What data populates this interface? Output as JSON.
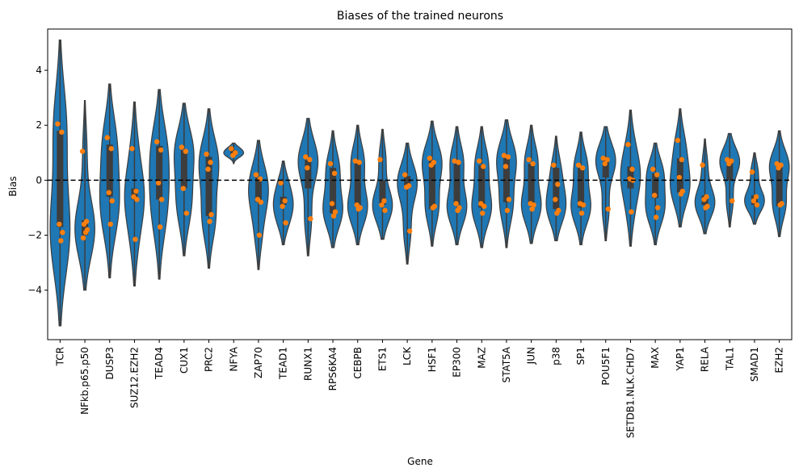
{
  "chart_data": {
    "type": "violin",
    "title": "Biases of the trained neurons",
    "xlabel": "Gene",
    "ylabel": "Bias",
    "ylim": [
      -5.8,
      5.5
    ],
    "yticks": [
      -4,
      -2,
      0,
      2,
      4
    ],
    "reference_line": {
      "y": 0,
      "style": "dashed",
      "color": "#000000"
    },
    "violin_color": "#1f77b4",
    "point_color": "#ff7f0e",
    "box_color": "#3d3d3d",
    "categories": [
      "TCR",
      "NFkb.p65.p50",
      "DUSP3",
      "SUZ12.EZH2",
      "TEAD4",
      "CUX1",
      "PRC2",
      "NFYA",
      "ZAP70",
      "TEAD1",
      "RUNX1",
      "RPS6KA4",
      "CEBPB",
      "ETS1",
      "LCK",
      "HSF1",
      "EP300",
      "MAZ",
      "STAT5A",
      "JUN",
      "p38",
      "SP1",
      "POU5F1",
      "SETDB1.NLK.CHD7",
      "MAX",
      "YAP1",
      "RELA",
      "TAL1",
      "SMAD1",
      "EZH2"
    ],
    "violins": [
      {
        "min": -5.3,
        "max": 5.1,
        "q1": -1.7,
        "q3": 1.8,
        "points": [
          2.05,
          1.75,
          -1.6,
          -1.9,
          -2.2
        ]
      },
      {
        "min": -4.0,
        "max": 2.9,
        "q1": -2.0,
        "q3": -1.45,
        "points": [
          1.05,
          -1.5,
          -1.6,
          -1.8,
          -1.9,
          -2.1
        ]
      },
      {
        "min": -3.55,
        "max": 3.5,
        "q1": -0.6,
        "q3": 1.3,
        "points": [
          1.55,
          1.15,
          -0.45,
          -0.75,
          -1.6
        ]
      },
      {
        "min": -3.85,
        "max": 2.85,
        "q1": -0.7,
        "q3": -0.3,
        "points": [
          1.15,
          -0.4,
          -0.6,
          -0.7,
          -2.15
        ]
      },
      {
        "min": -3.6,
        "max": 3.3,
        "q1": -0.7,
        "q3": 1.25,
        "points": [
          1.4,
          1.1,
          -0.1,
          -0.7,
          -1.7
        ]
      },
      {
        "min": -2.75,
        "max": 2.8,
        "q1": -0.3,
        "q3": 1.1,
        "points": [
          1.2,
          1.05,
          -0.3,
          -1.2
        ]
      },
      {
        "min": -3.2,
        "max": 2.6,
        "q1": -1.3,
        "q3": 0.85,
        "points": [
          0.95,
          0.65,
          0.4,
          -1.25,
          -1.5
        ]
      },
      {
        "min": 0.6,
        "max": 1.35,
        "q1": 0.9,
        "q3": 1.1,
        "points": [
          1.15,
          1.0,
          0.9
        ]
      },
      {
        "min": -3.25,
        "max": 1.45,
        "q1": -0.8,
        "q3": 0.1,
        "points": [
          0.2,
          0.05,
          -0.7,
          -0.8,
          -2.0
        ]
      },
      {
        "min": -2.35,
        "max": 0.7,
        "q1": -0.9,
        "q3": -0.6,
        "points": [
          -0.1,
          -0.75,
          -0.95,
          -1.55
        ]
      },
      {
        "min": -2.75,
        "max": 2.25,
        "q1": -0.3,
        "q3": 0.75,
        "points": [
          0.85,
          0.75,
          0.45,
          -1.4
        ]
      },
      {
        "min": -2.45,
        "max": 1.8,
        "q1": -1.2,
        "q3": 0.45,
        "points": [
          0.6,
          0.25,
          -0.85,
          -1.15,
          -1.3
        ]
      },
      {
        "min": -2.35,
        "max": 2.0,
        "q1": -0.95,
        "q3": 0.65,
        "points": [
          0.7,
          0.65,
          -0.9,
          -1.0,
          -1.05
        ]
      },
      {
        "min": -2.15,
        "max": 1.85,
        "q1": -0.9,
        "q3": 0.0,
        "points": [
          0.75,
          -0.75,
          -0.9,
          -1.1
        ]
      },
      {
        "min": -3.05,
        "max": 1.35,
        "q1": -0.25,
        "q3": 0.15,
        "points": [
          0.2,
          -0.2,
          -0.25,
          -1.85
        ]
      },
      {
        "min": -2.4,
        "max": 2.15,
        "q1": -1.05,
        "q3": 0.75,
        "points": [
          0.8,
          0.65,
          0.55,
          -0.95,
          -1.0
        ]
      },
      {
        "min": -2.35,
        "max": 1.95,
        "q1": -0.9,
        "q3": 0.6,
        "points": [
          0.7,
          0.65,
          -0.85,
          -1.0,
          -1.1
        ]
      },
      {
        "min": -2.45,
        "max": 1.95,
        "q1": -1.0,
        "q3": 0.55,
        "points": [
          0.7,
          0.5,
          -0.85,
          -0.95,
          -1.2
        ]
      },
      {
        "min": -2.45,
        "max": 2.2,
        "q1": -0.8,
        "q3": 0.85,
        "points": [
          0.9,
          0.85,
          0.5,
          -0.7,
          -1.1
        ]
      },
      {
        "min": -2.3,
        "max": 2.0,
        "q1": -0.9,
        "q3": 0.6,
        "points": [
          0.75,
          0.6,
          -0.85,
          -0.9,
          -1.05
        ]
      },
      {
        "min": -2.2,
        "max": 1.6,
        "q1": -1.05,
        "q3": 0.45,
        "points": [
          0.55,
          -0.15,
          -0.7,
          -1.1,
          -1.2
        ]
      },
      {
        "min": -2.35,
        "max": 1.75,
        "q1": -1.0,
        "q3": 0.45,
        "points": [
          0.55,
          0.45,
          -0.85,
          -0.9,
          -1.2
        ]
      },
      {
        "min": -2.2,
        "max": 1.95,
        "q1": 0.1,
        "q3": 0.85,
        "points": [
          0.8,
          0.75,
          0.6,
          -1.05
        ]
      },
      {
        "min": -2.4,
        "max": 2.55,
        "q1": -0.3,
        "q3": 0.5,
        "points": [
          1.3,
          0.4,
          0.05,
          0.0,
          -1.15
        ]
      },
      {
        "min": -2.35,
        "max": 1.35,
        "q1": -0.65,
        "q3": 0.25,
        "points": [
          0.4,
          0.2,
          -0.55,
          -1.0,
          -1.35
        ]
      },
      {
        "min": -1.7,
        "max": 2.6,
        "q1": -0.45,
        "q3": 0.8,
        "points": [
          1.45,
          0.75,
          0.1,
          -0.4,
          -0.5
        ]
      },
      {
        "min": -1.95,
        "max": 1.5,
        "q1": -0.9,
        "q3": -0.55,
        "points": [
          0.55,
          -0.6,
          -0.7,
          -0.95,
          -1.0
        ]
      },
      {
        "min": -1.7,
        "max": 1.7,
        "q1": 0.0,
        "q3": 0.75,
        "points": [
          0.75,
          0.7,
          0.6,
          -0.75
        ]
      },
      {
        "min": -1.6,
        "max": 1.0,
        "q1": -0.9,
        "q3": -0.55,
        "points": [
          0.3,
          -0.6,
          -0.75,
          -0.9
        ]
      },
      {
        "min": -2.05,
        "max": 1.8,
        "q1": -0.95,
        "q3": 0.55,
        "points": [
          0.6,
          0.55,
          0.45,
          -0.85,
          -0.9
        ]
      }
    ]
  }
}
